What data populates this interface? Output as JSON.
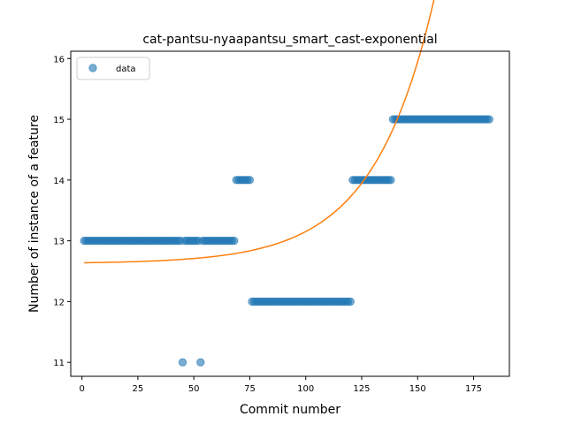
{
  "chart_data": {
    "type": "scatter",
    "title": "cat-pantsu-nyaapantsu_smart_cast-exponential",
    "xlabel": "Commit number",
    "ylabel": "Number of instance of a feature",
    "xlim": [
      -5,
      191
    ],
    "ylim": [
      10.77,
      16.12
    ],
    "x_ticks": [
      0,
      25,
      50,
      75,
      100,
      125,
      150,
      175
    ],
    "y_ticks": [
      11,
      12,
      13,
      14,
      15,
      16
    ],
    "grid": false,
    "legend_position": "top-left",
    "colors": {
      "data": "#1f77b4",
      "fit": "#ff7f0e"
    },
    "series": [
      {
        "name": "data",
        "kind": "scatter",
        "segments": [
          {
            "x_from": 1,
            "x_to": 44,
            "y": 13
          },
          {
            "x_from": 45,
            "x_to": 45,
            "y": 11
          },
          {
            "x_from": 46,
            "x_to": 52,
            "y": 13
          },
          {
            "x_from": 53,
            "x_to": 53,
            "y": 11
          },
          {
            "x_from": 54,
            "x_to": 68,
            "y": 13
          },
          {
            "x_from": 69,
            "x_to": 75,
            "y": 14
          },
          {
            "x_from": 76,
            "x_to": 120,
            "y": 12
          },
          {
            "x_from": 121,
            "x_to": 138,
            "y": 14
          },
          {
            "x_from": 139,
            "x_to": 182,
            "y": 15
          }
        ]
      },
      {
        "kind": "line",
        "fit": {
          "model": "exponential",
          "a": 12.625,
          "b": 0.0138,
          "c": 0.0368,
          "x_from": 1,
          "x_to": 182
        }
      }
    ]
  }
}
